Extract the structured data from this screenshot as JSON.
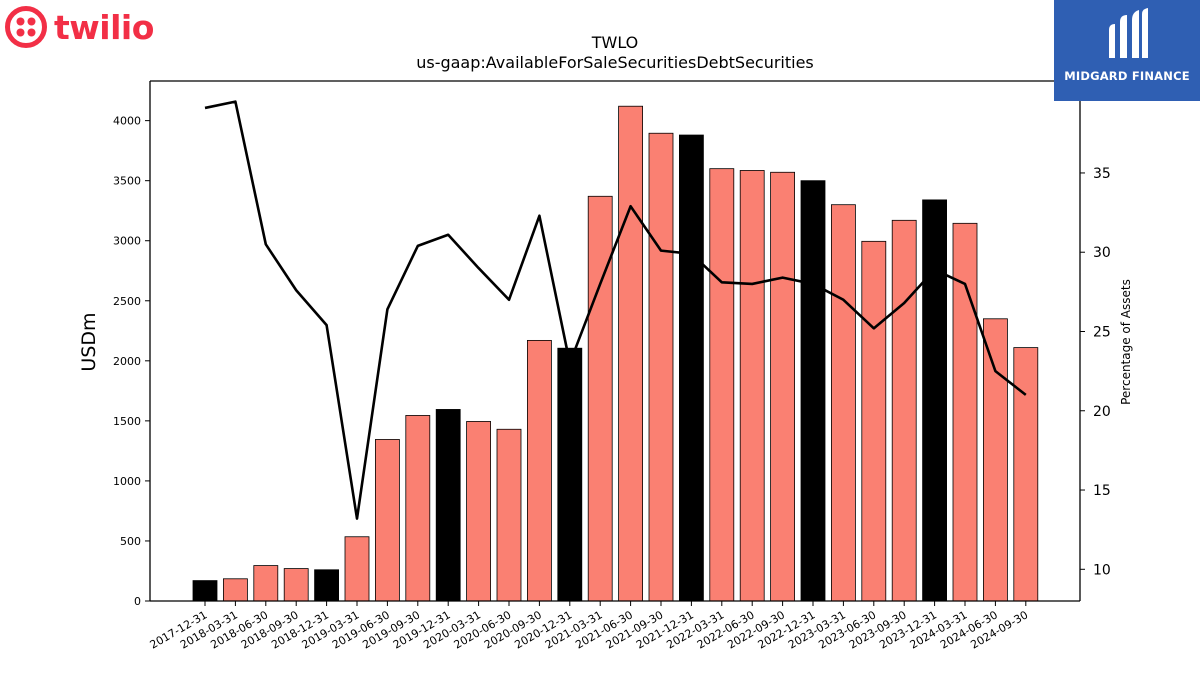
{
  "logos": {
    "left": "twilio",
    "right": "MIDGARD FINANCE"
  },
  "colors": {
    "bar_default": "#fa8072",
    "bar_year_end": "#000000",
    "line": "#000000",
    "twilio_red": "#f22f46",
    "midgard_blue": "#2f5fb3"
  },
  "chart_data": {
    "type": "bar",
    "title": "TWLO",
    "subtitle": "us-gaap:AvailableForSaleSecuritiesDebtSecurities",
    "ylabel": "USDm",
    "y2label": "Percentage of Assets",
    "categories": [
      "2017-12-31",
      "2018-03-31",
      "2018-06-30",
      "2018-09-30",
      "2018-12-31",
      "2019-03-31",
      "2019-06-30",
      "2019-09-30",
      "2019-12-31",
      "2020-03-31",
      "2020-06-30",
      "2020-09-30",
      "2020-12-31",
      "2021-03-31",
      "2021-06-30",
      "2021-09-30",
      "2021-12-31",
      "2022-03-31",
      "2022-06-30",
      "2022-09-30",
      "2022-12-31",
      "2023-03-31",
      "2023-06-30",
      "2023-09-30",
      "2023-12-31",
      "2024-03-31",
      "2024-06-30",
      "2024-09-30"
    ],
    "series": [
      {
        "values": [
          170,
          185,
          295,
          270,
          260,
          535,
          1345,
          1545,
          1595,
          1495,
          1430,
          2170,
          2105,
          3370,
          4120,
          3895,
          3880,
          3600,
          3585,
          3570,
          3500,
          3300,
          2995,
          3170,
          3340,
          3145,
          2350,
          2110
        ],
        "highlight": [
          true,
          false,
          false,
          false,
          true,
          false,
          false,
          false,
          true,
          false,
          false,
          false,
          true,
          false,
          false,
          false,
          true,
          false,
          false,
          false,
          true,
          false,
          false,
          false,
          true,
          false,
          false,
          false
        ],
        "axis": "left"
      },
      {
        "type": "line",
        "values": [
          39.1,
          39.5,
          30.5,
          27.6,
          25.4,
          13.2,
          26.4,
          30.4,
          31.1,
          29.0,
          27.0,
          32.3,
          23.0,
          28.0,
          32.9,
          30.1,
          29.9,
          28.1,
          28.0,
          28.4,
          28.0,
          27.0,
          25.2,
          26.8,
          28.9,
          28.0,
          22.5,
          21.0
        ],
        "axis": "right"
      }
    ],
    "ylim": [
      0,
      4330
    ],
    "y_ticks": [
      0,
      500,
      1000,
      1500,
      2000,
      2500,
      3000,
      3500,
      4000
    ],
    "y2lim": [
      8.0,
      40.8
    ],
    "y2_ticks": [
      10,
      15,
      20,
      25,
      30,
      35
    ],
    "grid": false,
    "legend": "none"
  }
}
